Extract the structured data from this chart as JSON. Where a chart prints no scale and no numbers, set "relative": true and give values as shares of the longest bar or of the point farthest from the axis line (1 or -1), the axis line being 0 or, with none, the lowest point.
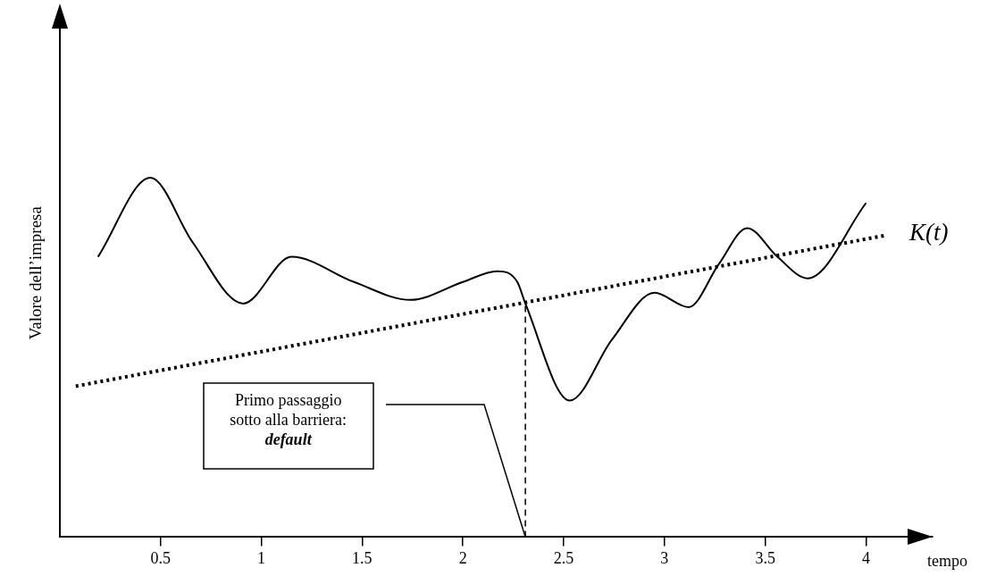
{
  "chart_data": {
    "type": "line",
    "xlabel": "tempo",
    "ylabel": "Valore dell’impresa",
    "relative": true,
    "xlim": [
      0,
      4.33
    ],
    "xticks": [
      0.5,
      1,
      1.5,
      2,
      2.5,
      3,
      3.5,
      4
    ],
    "grid": false,
    "legend": false,
    "marker": "none",
    "series": [
      {
        "color": "#000000",
        "line_style": "solid",
        "x": [
          0.19,
          0.45,
          0.66,
          0.91,
          1.15,
          1.46,
          1.74,
          2.0,
          2.17,
          2.27,
          2.31,
          2.53,
          2.74,
          2.95,
          3.12,
          3.27,
          3.41,
          3.56,
          3.71,
          4.0
        ],
        "values": [
          0.78,
          1.0,
          0.82,
          0.65,
          0.78,
          0.71,
          0.66,
          0.71,
          0.74,
          0.71,
          0.65,
          0.38,
          0.55,
          0.68,
          0.64,
          0.76,
          0.86,
          0.78,
          0.72,
          0.93
        ]
      },
      {
        "name": "K(t)",
        "color": "#000000",
        "line_style": "dotted",
        "x": [
          0.08,
          4.1
        ],
        "values": [
          0.42,
          0.84
        ]
      },
      {
        "color": "#000000",
        "line_style": "dashed",
        "x": [
          2.31,
          2.31
        ],
        "values": [
          0,
          0.65
        ]
      }
    ],
    "annotations": [
      "Primo passaggio\nsotto alla barriera:\ndefault"
    ]
  }
}
